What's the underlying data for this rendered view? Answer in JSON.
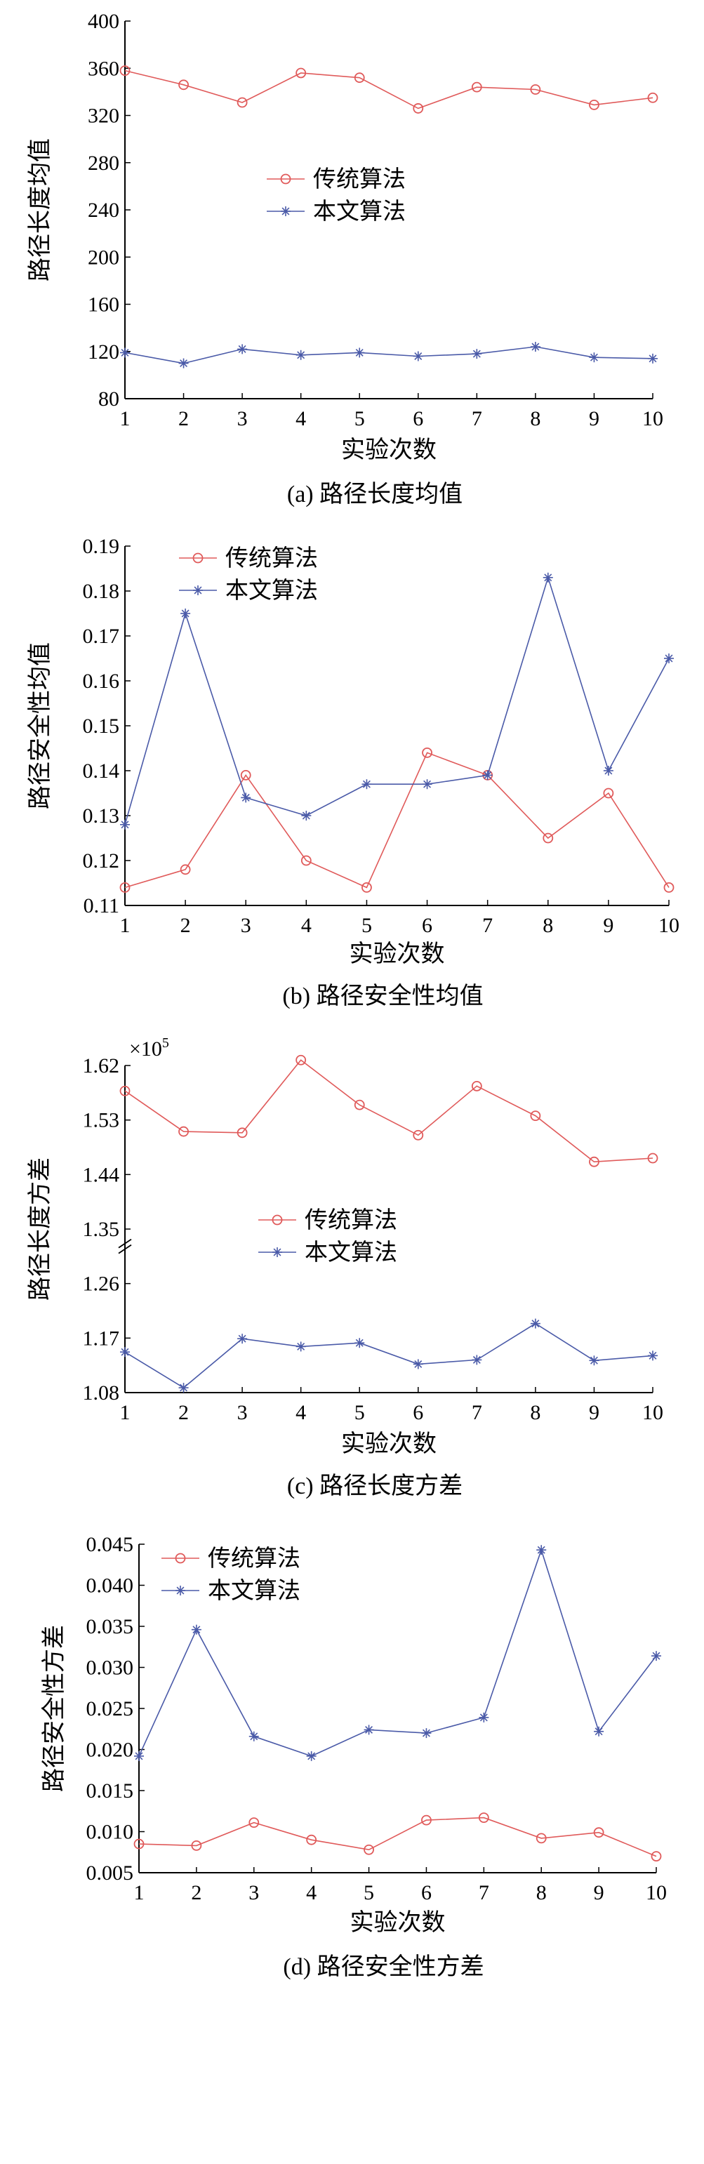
{
  "colors": {
    "traditional": "#e05a5a",
    "proposed": "#4a5aa8",
    "axis": "#000000"
  },
  "chart_data": [
    {
      "type": "line",
      "caption": "(a) 路径长度均值",
      "xlabel": "实验次数",
      "ylabel": "路径长度均值",
      "x": [
        1,
        2,
        3,
        4,
        5,
        6,
        7,
        8,
        9,
        10
      ],
      "xlim": [
        1,
        10
      ],
      "ylim": [
        80,
        400
      ],
      "yticks": [
        "80",
        "120",
        "160",
        "200",
        "240",
        "280",
        "320",
        "360",
        "400"
      ],
      "yticks_values": [
        80,
        120,
        160,
        200,
        240,
        280,
        320,
        360,
        400
      ],
      "legend_position": "middle",
      "grid": false,
      "series": [
        {
          "name": "传统算法",
          "marker": "circle",
          "values": [
            358,
            346,
            331,
            356,
            352,
            326,
            344,
            342,
            329,
            335
          ]
        },
        {
          "name": "本文算法",
          "marker": "star",
          "values": [
            119,
            110,
            122,
            117,
            119,
            116,
            118,
            124,
            115,
            114
          ]
        }
      ]
    },
    {
      "type": "line",
      "caption": "(b) 路径安全性均值",
      "xlabel": "实验次数",
      "ylabel": "路径安全性均值",
      "x": [
        1,
        2,
        3,
        4,
        5,
        6,
        7,
        8,
        9,
        10
      ],
      "xlim": [
        1,
        10
      ],
      "ylim": [
        0.11,
        0.19
      ],
      "yticks": [
        "0.11",
        "0.12",
        "0.13",
        "0.14",
        "0.15",
        "0.16",
        "0.17",
        "0.18",
        "0.19"
      ],
      "yticks_values": [
        0.11,
        0.12,
        0.13,
        0.14,
        0.15,
        0.16,
        0.17,
        0.18,
        0.19
      ],
      "legend_position": "top-left",
      "grid": false,
      "series": [
        {
          "name": "传统算法",
          "marker": "circle",
          "values": [
            0.114,
            0.118,
            0.139,
            0.12,
            0.114,
            0.144,
            0.139,
            0.125,
            0.135,
            0.114
          ]
        },
        {
          "name": "本文算法",
          "marker": "star",
          "values": [
            0.128,
            0.175,
            0.134,
            0.13,
            0.137,
            0.137,
            0.139,
            0.183,
            0.14,
            0.165
          ]
        }
      ]
    },
    {
      "type": "line",
      "caption": "(c) 路径长度方差",
      "xlabel": "实验次数",
      "ylabel": "路径长度方差",
      "exponent_label": "×10",
      "exponent_power": "5",
      "x": [
        1,
        2,
        3,
        4,
        5,
        6,
        7,
        8,
        9,
        10
      ],
      "xlim": [
        1,
        10
      ],
      "ylim": [
        1.08,
        1.62
      ],
      "axis_break": "between 1.26 and 1.35",
      "yticks": [
        "1.08",
        "1.17",
        "1.26",
        "1.35",
        "1.44",
        "1.53",
        "1.62"
      ],
      "yticks_values": [
        1.08,
        1.17,
        1.26,
        1.35,
        1.44,
        1.53,
        1.62
      ],
      "legend_position": "middle",
      "grid": false,
      "series": [
        {
          "name": "传统算法",
          "marker": "circle",
          "values": [
            1.578,
            1.511,
            1.509,
            1.629,
            1.555,
            1.505,
            1.586,
            1.537,
            1.461,
            1.467
          ]
        },
        {
          "name": "本文算法",
          "marker": "star",
          "values": [
            1.147,
            1.088,
            1.169,
            1.156,
            1.162,
            1.127,
            1.134,
            1.194,
            1.133,
            1.141
          ]
        }
      ]
    },
    {
      "type": "line",
      "caption": "(d) 路径安全性方差",
      "xlabel": "实验次数",
      "ylabel": "路径安全性方差",
      "x": [
        1,
        2,
        3,
        4,
        5,
        6,
        7,
        8,
        9,
        10
      ],
      "xlim": [
        1,
        10
      ],
      "ylim": [
        0.005,
        0.045
      ],
      "yticks": [
        "0.005",
        "0.010",
        "0.015",
        "0.020",
        "0.025",
        "0.030",
        "0.035",
        "0.040",
        "0.045"
      ],
      "yticks_values": [
        0.005,
        0.01,
        0.015,
        0.02,
        0.025,
        0.03,
        0.035,
        0.04,
        0.045
      ],
      "legend_position": "top-left",
      "grid": false,
      "series": [
        {
          "name": "传统算法",
          "marker": "circle",
          "values": [
            0.0085,
            0.0083,
            0.0111,
            0.009,
            0.0078,
            0.0114,
            0.0117,
            0.0092,
            0.0099,
            0.007
          ]
        },
        {
          "name": "本文算法",
          "marker": "star",
          "values": [
            0.0192,
            0.0346,
            0.0216,
            0.0192,
            0.0224,
            0.022,
            0.0239,
            0.0443,
            0.0222,
            0.0314
          ]
        }
      ]
    }
  ]
}
